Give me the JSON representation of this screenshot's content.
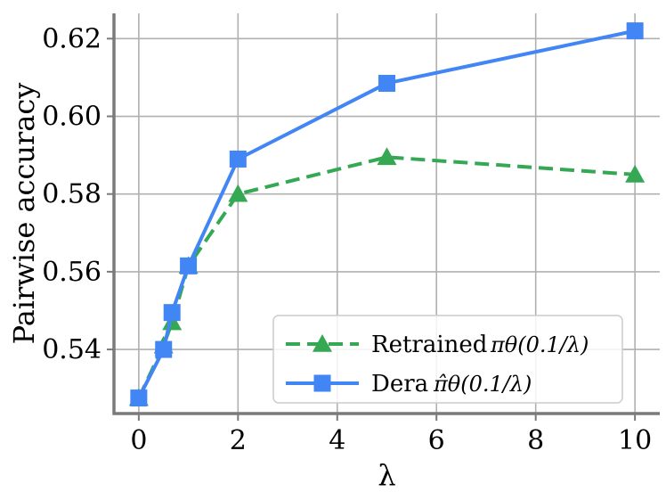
{
  "chart_data": {
    "type": "line",
    "xlabel": "λ",
    "ylabel": "Pairwise accuracy",
    "xlim": [
      -0.5,
      10.5
    ],
    "ylim": [
      0.5235,
      0.6265
    ],
    "xticks": [
      0,
      2,
      4,
      6,
      8,
      10
    ],
    "yticks": [
      0.54,
      0.56,
      0.58,
      0.6,
      0.62
    ],
    "ytick_labels": [
      "0.54",
      "0.56",
      "0.58",
      "0.60",
      "0.62"
    ],
    "grid": true,
    "legend_position": "bottom-right",
    "series": [
      {
        "name": "Retrained",
        "math": "πθ(0.1/λ)",
        "color": "#34a853",
        "style": "dashed",
        "marker": "triangle",
        "x": [
          0,
          0.5,
          0.67,
          1,
          2,
          5,
          10
        ],
        "y": [
          0.5275,
          0.541,
          0.547,
          0.5615,
          0.58,
          0.5895,
          0.585
        ]
      },
      {
        "name": "Dera",
        "math": "π̂θ(0.1/λ)",
        "color": "#4285f4",
        "style": "solid",
        "marker": "square",
        "x": [
          0,
          0.5,
          0.67,
          1,
          2,
          5,
          10
        ],
        "y": [
          0.5275,
          0.54,
          0.5495,
          0.5615,
          0.589,
          0.6085,
          0.622
        ]
      }
    ]
  }
}
